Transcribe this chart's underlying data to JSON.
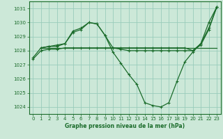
{
  "bg_color": "#cce8d8",
  "grid_color": "#99ccbb",
  "line_color": "#1a6b2a",
  "xlabel": "Graphe pression niveau de la mer (hPa)",
  "ylim": [
    1023.5,
    1031.5
  ],
  "xlim": [
    -0.5,
    23.5
  ],
  "yticks": [
    1024,
    1025,
    1026,
    1027,
    1028,
    1029,
    1030,
    1031
  ],
  "xticks": [
    0,
    1,
    2,
    3,
    4,
    5,
    6,
    7,
    8,
    9,
    10,
    11,
    12,
    13,
    14,
    15,
    16,
    17,
    18,
    19,
    20,
    21,
    22,
    23
  ],
  "line1_x": [
    0,
    1,
    2,
    3,
    4,
    5,
    6,
    7,
    8,
    9,
    10,
    11,
    12,
    13,
    14,
    15,
    16,
    17,
    18,
    19,
    20,
    21,
    22,
    23
  ],
  "line1_y": [
    1027.5,
    1028.2,
    1028.3,
    1028.3,
    1028.5,
    1029.4,
    1029.6,
    1030.0,
    1029.9,
    1029.1,
    1027.9,
    1027.1,
    1026.3,
    1025.6,
    1024.3,
    1024.1,
    1024.0,
    1024.3,
    1025.8,
    1027.2,
    1027.9,
    1028.5,
    1030.0,
    1031.1
  ],
  "line2_x": [
    1,
    2,
    3,
    4,
    5,
    6,
    7,
    8,
    9,
    10,
    11,
    12,
    13,
    14,
    15,
    16,
    17,
    18,
    19,
    20,
    21,
    22,
    23
  ],
  "line2_y": [
    1028.2,
    1028.3,
    1028.4,
    1028.5,
    1029.3,
    1029.5,
    1030.0,
    1029.9,
    1029.1,
    1028.2,
    1028.1,
    1028.0,
    1028.0,
    1028.0,
    1028.0,
    1028.0,
    1028.0,
    1028.0,
    1028.0,
    1028.0,
    1028.4,
    1029.5,
    1031.1
  ],
  "line3_x": [
    1,
    2,
    3,
    4,
    5,
    6,
    7,
    8,
    9,
    10,
    11,
    12,
    13,
    14,
    15,
    16,
    17,
    18,
    19,
    20,
    21,
    22,
    23
  ],
  "line3_y": [
    1028.2,
    1028.2,
    1028.2,
    1028.2,
    1028.2,
    1028.2,
    1028.2,
    1028.2,
    1028.2,
    1028.2,
    1028.2,
    1028.2,
    1028.2,
    1028.2,
    1028.2,
    1028.2,
    1028.2,
    1028.2,
    1028.2,
    1028.2,
    1028.2,
    1028.2,
    1028.2
  ],
  "line4_x": [
    0,
    1,
    2,
    3,
    4,
    5,
    6,
    7,
    8,
    9,
    10,
    11,
    12,
    13,
    14,
    15,
    16,
    17,
    18,
    19,
    20,
    21,
    22,
    23
  ],
  "line4_y": [
    1027.4,
    1028.0,
    1028.1,
    1028.1,
    1028.2,
    1028.2,
    1028.2,
    1028.2,
    1028.2,
    1028.2,
    1028.2,
    1028.2,
    1028.2,
    1028.2,
    1028.2,
    1028.2,
    1028.2,
    1028.2,
    1028.2,
    1028.2,
    1028.0,
    1028.5,
    1029.6,
    1031.1
  ]
}
